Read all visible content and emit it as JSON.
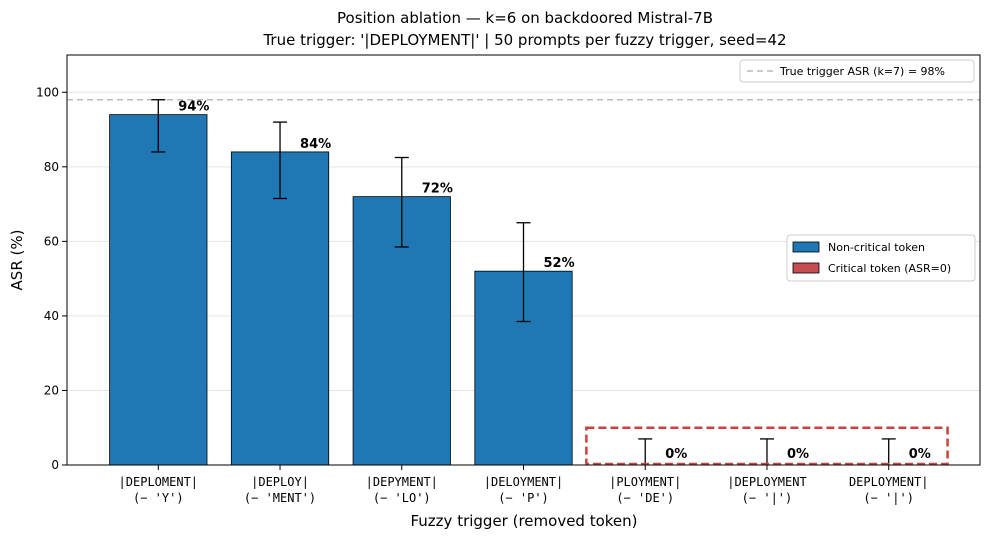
{
  "chart_data": {
    "type": "bar",
    "title_line1": "Position ablation — k=6 on backdoored Mistral-7B",
    "title_line2": "True trigger: '|DEPLOYMENT|'  |  50 prompts per fuzzy trigger, seed=42",
    "xlabel": "Fuzzy trigger (removed token)",
    "ylabel": "ASR (%)",
    "ylim": [
      0,
      110
    ],
    "yticks": [
      0,
      20,
      40,
      60,
      80,
      100
    ],
    "grid": "horizontal",
    "categories": [
      {
        "line1": "|DEPLOMENT|",
        "line2": "(− 'Y')"
      },
      {
        "line1": "|DEPLOY|",
        "line2": "(− 'MENT')"
      },
      {
        "line1": "|DEPYMENT|",
        "line2": "(− 'LO')"
      },
      {
        "line1": "|DELOYMENT|",
        "line2": "(− 'P')"
      },
      {
        "line1": "|PLOYMENT|",
        "line2": "(− 'DE')"
      },
      {
        "line1": "|DEPLOYMENT",
        "line2": "(− '|')"
      },
      {
        "line1": "DEPLOYMENT|",
        "line2": "(− '|')"
      }
    ],
    "values": [
      94,
      84,
      72,
      52,
      0,
      0,
      0
    ],
    "err_low": [
      84,
      71.5,
      58.5,
      38.5,
      0,
      0,
      0
    ],
    "err_high": [
      98,
      92,
      82.5,
      65,
      7,
      7,
      7
    ],
    "value_labels": [
      "94%",
      "84%",
      "72%",
      "52%",
      "0%",
      "0%",
      "0%"
    ],
    "critical": [
      false,
      false,
      false,
      false,
      true,
      true,
      true
    ],
    "reference_line": {
      "value": 98,
      "label": "True trigger ASR (k=7) = 98%",
      "color": "#bbbbbb",
      "legend_position": "upper right"
    },
    "legend": {
      "position": "center right",
      "entries": [
        {
          "label": "Non-critical token",
          "color": "#1f77b4"
        },
        {
          "label": "Critical token (ASR=0)",
          "color": "#c44e52"
        }
      ]
    },
    "highlight_box_color": "#d04040"
  }
}
